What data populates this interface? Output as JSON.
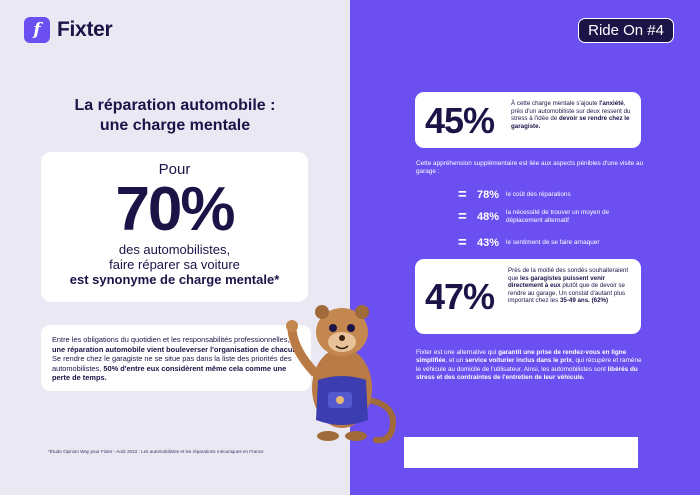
{
  "logo": {
    "mark": "f",
    "name": "Fixter"
  },
  "badge": "Ride On #4",
  "title": {
    "line1": "La réparation automobile :",
    "line2": "une charge mentale"
  },
  "stat": {
    "pour": "Pour",
    "value": "70%",
    "line1": "des automobilistes,",
    "line2": "faire réparer sa voiture",
    "line3": "est synonyme de charge mentale*"
  },
  "info": {
    "t1": "Entre les obligations du quotidien et les responsabilités professionnelles, ",
    "b1": "une réparation automobile vient bouleverser l'organisation de chacun",
    "t2": ". Se rendre chez le garagiste ne se situe pas dans la liste des priorités des automobilistes, ",
    "b2": "50% d'entre eux considèrent même cela comme une perte de temps."
  },
  "footnote": "*Étude Opinion Way pour Fixter - Août 2023 : Les automobilistes et les réparations mécaniques en France",
  "card45": {
    "value": "45%",
    "t1": "À cette charge mentale s'ajoute ",
    "b1": "l'anxiété",
    "t2": ", près d'un automobiliste sur deux ressent du stress à l'idée de ",
    "b2": "devoir se rendre chez le garagiste."
  },
  "intro": "Cette appréhension supplémentaire est liée aux aspects pénibles d'une visite au garage :",
  "bullets": [
    {
      "eq": "=",
      "pct": "78%",
      "desc": "le coût des réparations"
    },
    {
      "eq": "=",
      "pct": "48%",
      "desc": "la nécessité de trouver un moyen de déplacement alternatif"
    },
    {
      "eq": "=",
      "pct": "43%",
      "desc": "le sentiment de se faire arnaquer"
    }
  ],
  "card47": {
    "value": "47%",
    "t1": "Près de la moitié des sondés souhaiteraient que ",
    "b1": "les garagistes puissent venir directement à eux",
    "t2": " plutôt que de devoir se rendre au garage. Un constat d'autant plus important chez les ",
    "b2": "35-49 ans. (62%)"
  },
  "outro": {
    "t1": "Fixter est une alternative qui ",
    "b1": "garantit une prise de rendez-vous en ligne simplifiée",
    "t2": ", et un ",
    "b2": "service voiturier inclus dans le prix",
    "t3": ", qui récupère et ramène le véhicule au domicile de l'utilisateur. Ainsi, les automobilistes sont ",
    "b3": "libérés du stress et des contraintes de l'entretien de leur véhicule."
  },
  "colors": {
    "brand": "#6b4ff0",
    "navy": "#1a1447",
    "panel": "#e9e8f3"
  }
}
